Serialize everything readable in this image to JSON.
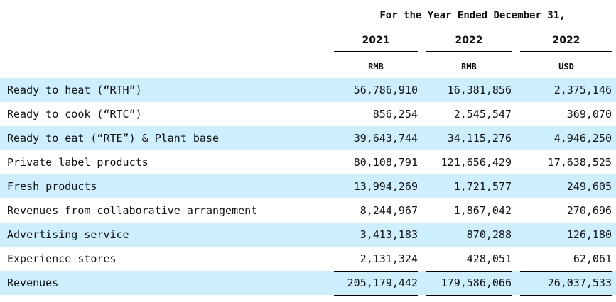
{
  "header": {
    "period": "For the Year Ended December 31,",
    "years": [
      "2021",
      "2022",
      "2022"
    ],
    "currencies": [
      "RMB",
      "RMB",
      "USD"
    ]
  },
  "rows": [
    {
      "label": "Ready to heat (“RTH”)",
      "values": [
        "56,786,910",
        "16,381,856",
        "2,375,146"
      ]
    },
    {
      "label": "Ready to cook (“RTC”)",
      "values": [
        "856,254",
        "2,545,547",
        "369,070"
      ]
    },
    {
      "label": "Ready to eat (“RTE”) & Plant base",
      "values": [
        "39,643,744",
        "34,115,276",
        "4,946,250"
      ]
    },
    {
      "label": "Private label products",
      "values": [
        "80,108,791",
        "121,656,429",
        "17,638,525"
      ]
    },
    {
      "label": "Fresh products",
      "values": [
        "13,994,269",
        "1,721,577",
        "249,605"
      ]
    },
    {
      "label": "Revenues from collaborative arrangement",
      "values": [
        "8,244,967",
        "1,867,042",
        "270,696"
      ]
    },
    {
      "label": "Advertising service",
      "values": [
        "3,413,183",
        "870,288",
        "126,180"
      ]
    },
    {
      "label": "Experience stores",
      "values": [
        "2,131,324",
        "428,051",
        "62,061"
      ]
    },
    {
      "label": "Revenues",
      "values": [
        "205,179,442",
        "179,586,066",
        "26,037,533"
      ]
    }
  ],
  "colors": {
    "row_shade": "#cdeefc"
  }
}
